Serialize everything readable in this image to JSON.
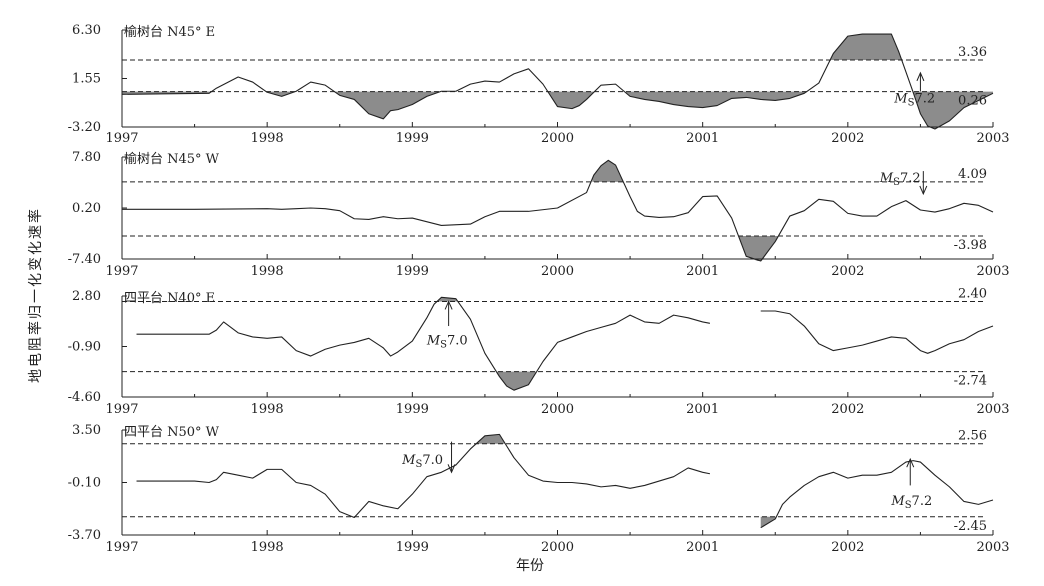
{
  "y_axis_title": "地电阻率归一化变化速率",
  "x_axis_title": "年份",
  "x_ticks": [
    "1997",
    "1998",
    "1999",
    "2000",
    "2001",
    "2002",
    "2003"
  ],
  "chart_data": [
    {
      "type": "line",
      "station_label": "榆树台 N45° E",
      "xlim": [
        1997,
        2003
      ],
      "ylim": [
        -3.2,
        6.3
      ],
      "y_ticks": [
        "6.30",
        "1.55",
        "-3.20"
      ],
      "thresholds": [
        {
          "value": 3.36,
          "label": "3.36",
          "type": "upper"
        },
        {
          "value": 0.26,
          "label": "0.26",
          "type": "lower"
        }
      ],
      "event": {
        "label_m": "M",
        "label_s": "S",
        "label_mag": "7.2",
        "x": 2002.5,
        "arrow": "up",
        "y_from": 0.3,
        "y_to": 2.1,
        "label_x": 2002.32,
        "label_y": -0.3
      },
      "segments": [
        {
          "x": [
            1997.0,
            1997.3,
            1997.6,
            1997.65,
            1997.8,
            1997.9,
            1998.0,
            1998.1,
            1998.2,
            1998.3,
            1998.4,
            1998.5,
            1998.6,
            1998.7,
            1998.8,
            1998.85,
            1998.9,
            1999.0,
            1999.1,
            1999.2,
            1999.3,
            1999.4,
            1999.5,
            1999.6,
            1999.7,
            1999.8,
            1999.9,
            2000.0,
            2000.1,
            2000.15,
            2000.2,
            2000.3,
            2000.4,
            2000.5,
            2000.6,
            2000.7,
            2000.8,
            2000.9,
            2001.0,
            2001.1,
            2001.2,
            2001.3,
            2001.4,
            2001.5,
            2001.6,
            2001.7,
            2001.8,
            2001.9,
            2002.0,
            2002.1,
            2002.2,
            2002.3,
            2002.35,
            2002.4,
            2002.45,
            2002.5,
            2002.55,
            2002.6,
            2002.7,
            2002.8,
            2002.9,
            2003.0
          ],
          "y": [
            0.0,
            0.05,
            0.1,
            0.6,
            1.7,
            1.2,
            0.2,
            -0.2,
            0.3,
            1.2,
            0.9,
            -0.1,
            -0.5,
            -1.9,
            -2.4,
            -1.6,
            -1.5,
            -1.0,
            -0.2,
            0.3,
            0.3,
            1.0,
            1.3,
            1.2,
            2.0,
            2.5,
            1.0,
            -1.2,
            -1.4,
            -1.1,
            -0.5,
            0.9,
            1.0,
            -0.2,
            -0.5,
            -0.7,
            -1.0,
            -1.2,
            -1.3,
            -1.1,
            -0.4,
            -0.3,
            -0.5,
            -0.6,
            -0.4,
            0.1,
            1.1,
            4.0,
            5.7,
            5.9,
            5.9,
            5.9,
            4.2,
            2.2,
            0.2,
            -1.9,
            -3.1,
            -3.4,
            -2.6,
            -1.3,
            -0.6,
            0.1
          ]
        }
      ]
    },
    {
      "type": "line",
      "station_label": "榆树台 N45° W",
      "xlim": [
        1997,
        2003
      ],
      "ylim": [
        -7.4,
        7.8
      ],
      "y_ticks": [
        "7.80",
        "0.20",
        "-7.40"
      ],
      "thresholds": [
        {
          "value": 4.09,
          "label": "4.09",
          "type": "upper"
        },
        {
          "value": -3.98,
          "label": "-3.98",
          "type": "lower"
        }
      ],
      "event": {
        "label_m": "M",
        "label_s": "S",
        "label_mag": "7.2",
        "x": 2002.52,
        "arrow": "down",
        "y_from": 5.7,
        "y_to": 2.3,
        "label_x": 2002.22,
        "label_y": 4.8
      },
      "segments": [
        {
          "x": [
            1997.0,
            1997.5,
            1998.0,
            1998.1,
            1998.2,
            1998.3,
            1998.4,
            1998.5,
            1998.6,
            1998.7,
            1998.8,
            1998.9,
            1999.0,
            1999.2,
            1999.4,
            1999.5,
            1999.6,
            1999.8,
            2000.0,
            2000.2,
            2000.25,
            2000.3,
            2000.35,
            2000.4,
            2000.5,
            2000.55,
            2000.6,
            2000.7,
            2000.8,
            2000.9,
            2001.0,
            2001.1,
            2001.2,
            2001.3,
            2001.4,
            2001.5,
            2001.6,
            2001.7,
            2001.8,
            2001.9,
            2002.0,
            2002.1,
            2002.2,
            2002.3,
            2002.4,
            2002.5,
            2002.6,
            2002.7,
            2002.8,
            2002.9,
            2003.0
          ],
          "y": [
            0.0,
            0.0,
            0.1,
            0.0,
            0.1,
            0.2,
            0.1,
            -0.2,
            -1.4,
            -1.5,
            -1.1,
            -1.4,
            -1.3,
            -2.4,
            -2.2,
            -1.1,
            -0.3,
            -0.3,
            0.2,
            2.5,
            5.1,
            6.5,
            7.3,
            6.6,
            1.9,
            -0.3,
            -1.0,
            -1.2,
            -1.1,
            -0.5,
            1.9,
            2.0,
            -1.3,
            -7.0,
            -7.9,
            -4.8,
            -1.0,
            -0.2,
            1.5,
            1.2,
            -0.6,
            -1.0,
            -1.0,
            0.4,
            1.3,
            -0.1,
            -0.4,
            0.1,
            0.9,
            0.6,
            -0.4
          ]
        }
      ]
    },
    {
      "type": "line",
      "station_label": "四平台 N40° E",
      "xlim": [
        1997,
        2003
      ],
      "ylim": [
        -4.6,
        2.8
      ],
      "y_ticks": [
        "2.80",
        "-0.90",
        "-4.60"
      ],
      "thresholds": [
        {
          "value": 2.4,
          "label": "2.40",
          "type": "upper"
        },
        {
          "value": -2.74,
          "label": "-2.74",
          "type": "lower"
        }
      ],
      "event": {
        "label_m": "M",
        "label_s": "S",
        "label_mag": "7.0",
        "x": 1999.25,
        "arrow": "up",
        "y_from": 0.6,
        "y_to": 2.4,
        "label_x": 1999.1,
        "label_y": -0.4
      },
      "segments": [
        {
          "x": [
            1997.1,
            1997.5,
            1997.6,
            1997.65,
            1997.7,
            1997.8,
            1997.9,
            1998.0,
            1998.1,
            1998.2,
            1998.3,
            1998.4,
            1998.5,
            1998.6,
            1998.7,
            1998.8,
            1998.85,
            1998.9,
            1999.0,
            1999.1,
            1999.15,
            1999.2,
            1999.3,
            1999.4,
            1999.5,
            1999.6,
            1999.65,
            1999.7,
            1999.8,
            1999.9,
            2000.0,
            2000.1,
            2000.2,
            2000.3,
            2000.4,
            2000.5,
            2000.6,
            2000.7,
            2000.8,
            2000.9,
            2001.0,
            2001.05
          ],
          "y": [
            0.0,
            0.0,
            0.0,
            0.3,
            0.9,
            0.1,
            -0.2,
            -0.3,
            -0.2,
            -1.2,
            -1.6,
            -1.1,
            -0.8,
            -0.6,
            -0.3,
            -1.0,
            -1.6,
            -1.3,
            -0.5,
            1.2,
            2.2,
            2.7,
            2.6,
            1.1,
            -1.4,
            -3.1,
            -3.8,
            -4.1,
            -3.7,
            -2.0,
            -0.6,
            -0.2,
            0.2,
            0.5,
            0.8,
            1.4,
            0.9,
            0.8,
            1.4,
            1.2,
            0.9,
            0.8
          ]
        },
        {
          "x": [
            2001.4,
            2001.5,
            2001.6,
            2001.7,
            2001.8,
            2001.9,
            2002.0,
            2002.1,
            2002.2,
            2002.3,
            2002.4,
            2002.5,
            2002.55,
            2002.6,
            2002.7,
            2002.8,
            2002.9,
            2003.0
          ],
          "y": [
            1.7,
            1.7,
            1.5,
            0.6,
            -0.7,
            -1.2,
            -1.0,
            -0.8,
            -0.5,
            -0.2,
            -0.3,
            -1.2,
            -1.4,
            -1.2,
            -0.7,
            -0.4,
            0.2,
            0.6
          ]
        }
      ]
    },
    {
      "type": "line",
      "station_label": "四平台 N50° W",
      "xlim": [
        1997,
        2003
      ],
      "ylim": [
        -3.7,
        3.5
      ],
      "y_ticks": [
        "3.50",
        "-0.10",
        "-3.70"
      ],
      "thresholds": [
        {
          "value": 2.56,
          "label": "2.56",
          "type": "upper"
        },
        {
          "value": -2.45,
          "label": "-2.45",
          "type": "lower"
        }
      ],
      "event": {
        "label_m": "M",
        "label_s": "S",
        "label_mag": "7.0",
        "x": 1999.27,
        "arrow": "down",
        "y_from": 2.7,
        "y_to": 0.6,
        "label_x": 1998.93,
        "label_y": 1.5
      },
      "event2": {
        "label_m": "M",
        "label_s": "S",
        "label_mag": "7.2",
        "x": 2002.43,
        "arrow": "up",
        "y_from": -0.3,
        "y_to": 1.5,
        "label_x": 2002.3,
        "label_y": -1.3
      },
      "segments": [
        {
          "x": [
            1997.1,
            1997.5,
            1997.6,
            1997.65,
            1997.7,
            1997.8,
            1997.9,
            1998.0,
            1998.1,
            1998.2,
            1998.3,
            1998.4,
            1998.5,
            1998.6,
            1998.7,
            1998.8,
            1998.9,
            1999.0,
            1999.1,
            1999.2,
            1999.3,
            1999.4,
            1999.5,
            1999.6,
            1999.7,
            1999.8,
            1999.9,
            2000.0,
            2000.1,
            2000.2,
            2000.3,
            2000.4,
            2000.5,
            2000.6,
            2000.7,
            2000.8,
            2000.9,
            2001.0,
            2001.05
          ],
          "y": [
            0.0,
            0.0,
            -0.1,
            0.1,
            0.6,
            0.4,
            0.2,
            0.8,
            0.8,
            -0.1,
            -0.3,
            -0.9,
            -2.1,
            -2.5,
            -1.4,
            -1.7,
            -1.9,
            -0.9,
            0.3,
            0.6,
            1.1,
            2.2,
            3.1,
            3.2,
            1.6,
            0.4,
            0.0,
            -0.1,
            -0.1,
            -0.2,
            -0.4,
            -0.3,
            -0.5,
            -0.3,
            0.0,
            0.3,
            0.9,
            0.6,
            0.5
          ]
        },
        {
          "x": [
            2001.4,
            2001.5,
            2001.55,
            2001.6,
            2001.7,
            2001.8,
            2001.9,
            2002.0,
            2002.1,
            2002.2,
            2002.3,
            2002.4,
            2002.45,
            2002.5,
            2002.6,
            2002.7,
            2002.8,
            2002.9,
            2003.0
          ],
          "y": [
            -3.2,
            -2.6,
            -1.6,
            -1.1,
            -0.3,
            0.3,
            0.6,
            0.2,
            0.4,
            0.4,
            0.6,
            1.3,
            1.4,
            1.3,
            0.4,
            -0.4,
            -1.4,
            -1.6,
            -1.3
          ]
        }
      ]
    }
  ]
}
